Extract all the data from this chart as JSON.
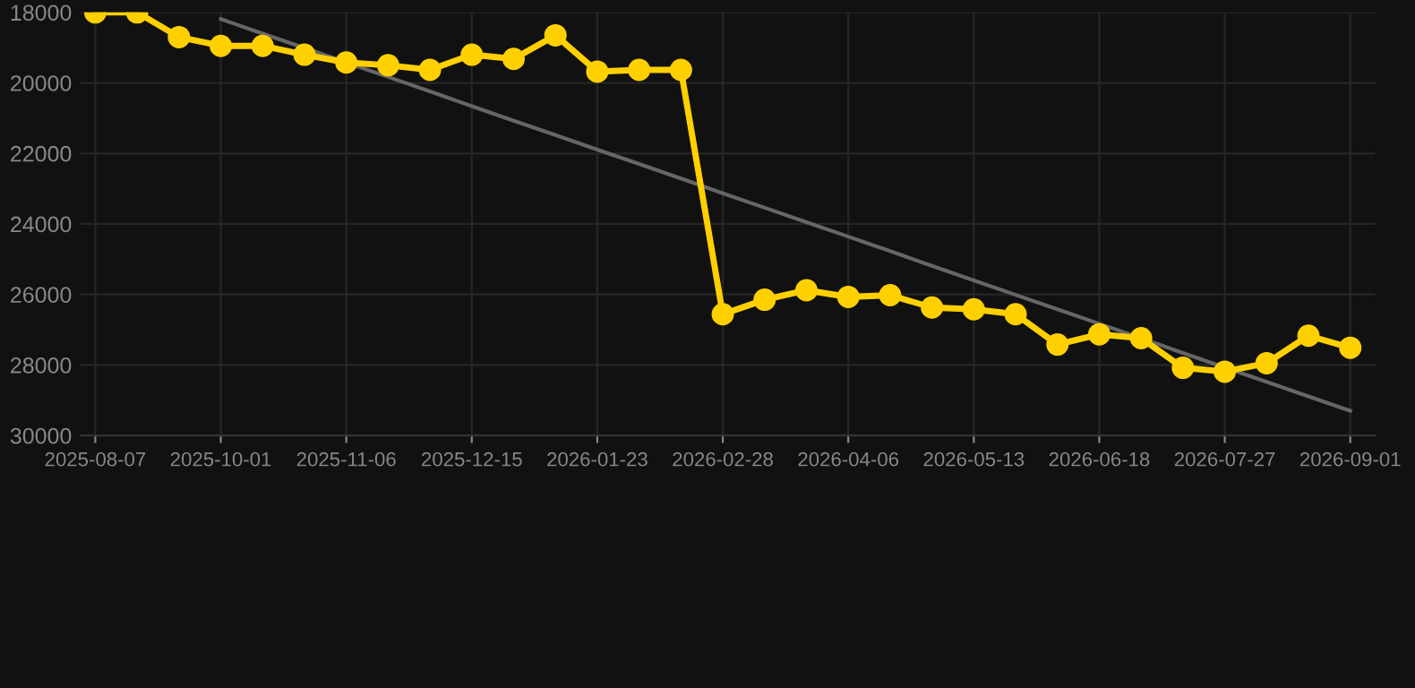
{
  "chart_data": {
    "type": "line",
    "categories": [
      "2025-08-07",
      null,
      null,
      "2025-10-01",
      null,
      null,
      "2025-11-06",
      null,
      null,
      "2025-12-15",
      null,
      null,
      "2026-01-23",
      null,
      null,
      "2026-02-28",
      null,
      null,
      "2026-04-06",
      null,
      null,
      "2026-05-13",
      null,
      null,
      "2026-06-18",
      null,
      null,
      "2026-07-27",
      null,
      null,
      "2026-09-01"
    ],
    "series": [
      {
        "color": "#ffd000",
        "marker": "circle",
        "values": [
          18000,
          18000,
          18700,
          18950,
          18950,
          19200,
          19420,
          19500,
          19630,
          19200,
          19320,
          18650,
          19680,
          19630,
          19630,
          26560,
          26150,
          25880,
          26070,
          26020,
          26370,
          26420,
          26560,
          27420,
          27130,
          27240,
          28080,
          28190,
          27950,
          27170,
          27510
        ]
      },
      {
        "color": "#666666",
        "marker": "none",
        "values": [
          null,
          null,
          null,
          18190,
          18600,
          19010,
          19420,
          19830,
          20240,
          20660,
          21070,
          21480,
          21890,
          22300,
          22710,
          23130,
          23540,
          23950,
          24360,
          24770,
          25190,
          25600,
          26010,
          26420,
          26830,
          27240,
          27660,
          28070,
          28480,
          28890,
          29300
        ]
      }
    ],
    "ylim": [
      30000,
      18000
    ],
    "yticks": [
      18000,
      20000,
      22000,
      24000,
      26000,
      28000,
      30000
    ],
    "grid": true
  }
}
